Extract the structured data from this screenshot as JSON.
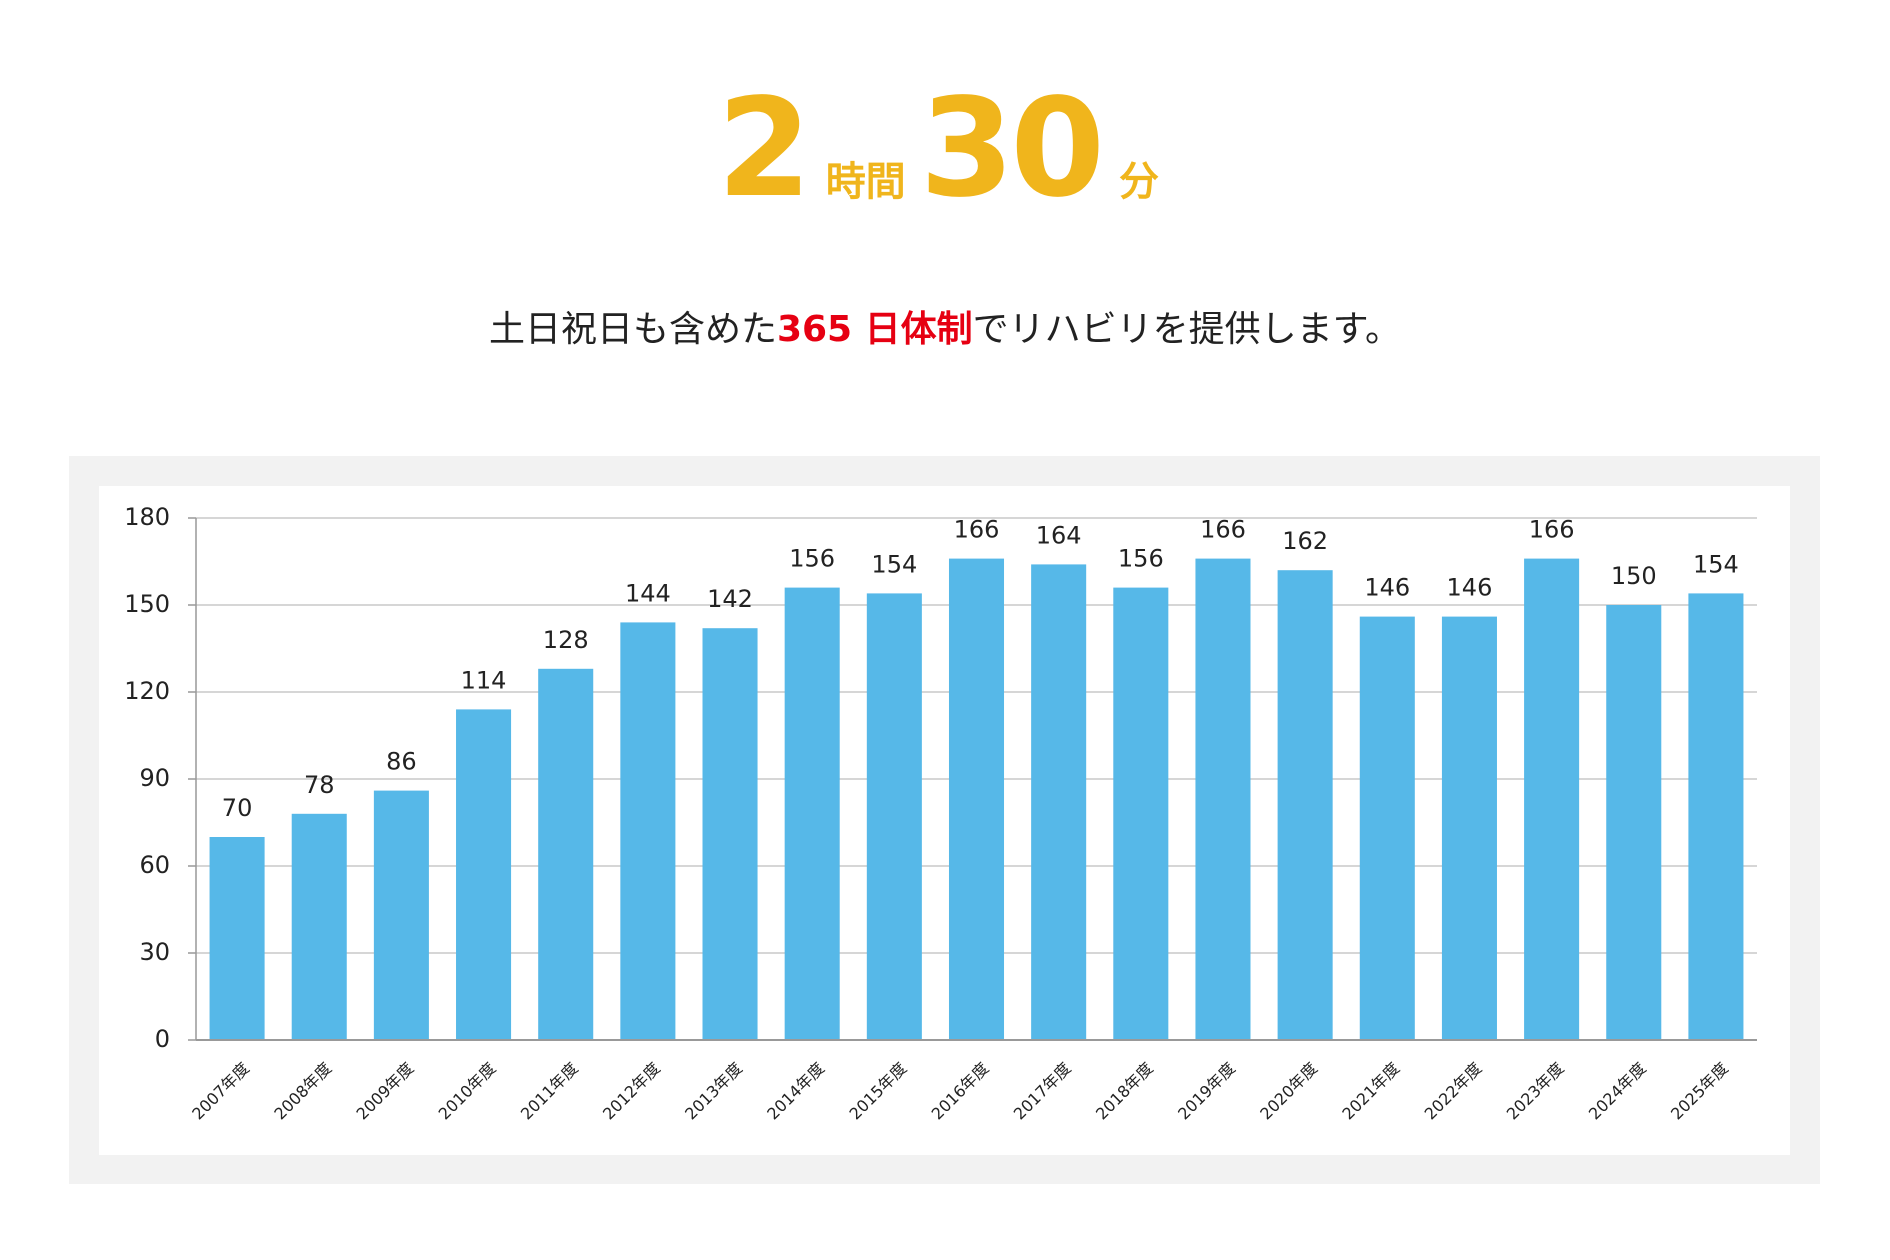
{
  "header": {
    "hours": "2",
    "hours_unit": "時間",
    "minutes": "30",
    "minutes_unit": "分"
  },
  "lead": {
    "before": "土日祝日も含めた",
    "highlight": "365 日体制",
    "after": "でリハビリを提供します。"
  },
  "chart_data": {
    "type": "bar",
    "categories": [
      "2007年度",
      "2008年度",
      "2009年度",
      "2010年度",
      "2011年度",
      "2012年度",
      "2013年度",
      "2014年度",
      "2015年度",
      "2016年度",
      "2017年度",
      "2018年度",
      "2019年度",
      "2020年度",
      "2021年度",
      "2022年度",
      "2023年度",
      "2024年度",
      "2025年度"
    ],
    "values": [
      70,
      78,
      86,
      114,
      128,
      144,
      142,
      156,
      154,
      166,
      164,
      156,
      166,
      162,
      146,
      146,
      166,
      150,
      154
    ],
    "color": "#56b8e8",
    "ylim": [
      0,
      180
    ],
    "yticks": [
      0,
      30,
      60,
      90,
      120,
      150,
      180
    ],
    "grid": true
  }
}
